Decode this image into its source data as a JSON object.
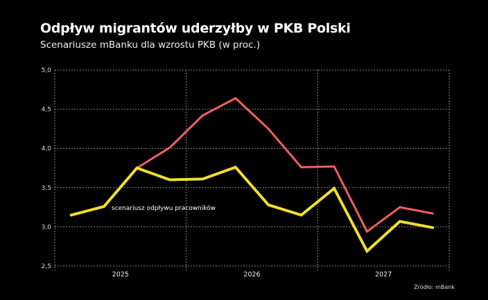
{
  "header": {
    "title": "Odpływ migrantów uderzyłby w PKB Polski",
    "subtitle": "Scenariusze mBanku dla wzrostu PKB (w proc.)"
  },
  "source": "Źródło: mBank",
  "chart_data": {
    "type": "line",
    "title": "Odpływ migrantów uderzyłby w PKB Polski",
    "subtitle": "Scenariusze mBanku dla wzrostu PKB (w proc.)",
    "x": [
      "2025 Q1",
      "2025 Q2",
      "2025 Q3",
      "2025 Q4",
      "2026 Q1",
      "2026 Q2",
      "2026 Q3",
      "2026 Q4",
      "2027 Q1",
      "2027 Q2",
      "2027 Q3",
      "2027 Q4"
    ],
    "x_tick_labels": [
      "2025",
      "2026",
      "2027"
    ],
    "ylim": [
      2.5,
      5.0
    ],
    "y_ticks": [
      "2,5",
      "3,0",
      "3,5",
      "4,0",
      "4,5",
      "5,0"
    ],
    "y_tick_values": [
      2.5,
      3.0,
      3.5,
      4.0,
      4.5,
      5.0
    ],
    "grid": true,
    "series": [
      {
        "color": "#f2605e",
        "values": [
          null,
          null,
          3.75,
          4.01,
          4.42,
          4.64,
          4.25,
          3.76,
          3.77,
          2.94,
          3.25,
          3.17
        ]
      },
      {
        "name": "scenariusz odpływu pracowników",
        "color": "#f0df2e",
        "values": [
          3.15,
          3.26,
          3.75,
          3.6,
          3.61,
          3.76,
          3.28,
          3.15,
          3.49,
          2.69,
          3.07,
          2.99
        ]
      }
    ],
    "annotations": [
      "scenariusz odpływu pracowników"
    ]
  }
}
